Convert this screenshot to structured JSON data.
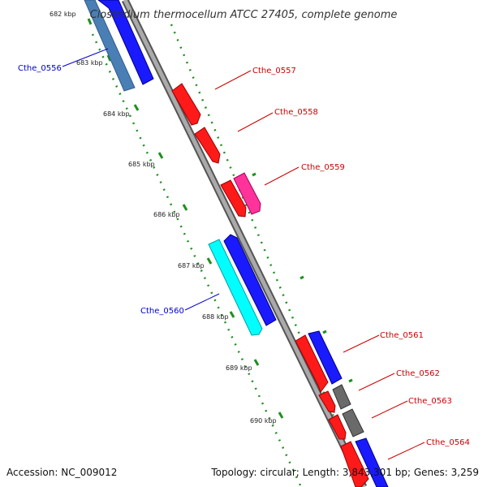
{
  "title": "Clostridium thermocellum ATCC 27405, complete genome",
  "footer": {
    "accession": "Accession: NC_009012",
    "summary": "Topology: circular; Length: 3,843,301 bp; Genes: 3,259"
  },
  "colors": {
    "forward_gene": "#ff0000",
    "reverse_gene": "#0000ff",
    "steelblue_gene": "#4a7fb5",
    "cyan_gene": "#00ffff",
    "magenta_gene": "#ff3399",
    "gray_gene": "#6a6a6a",
    "backbone": "#888888",
    "tick_marks": "#1f8f1f",
    "forward_label": "#cc0000",
    "reverse_label": "#0000cc"
  },
  "ticks": [
    "682 kbp",
    "683 kbp",
    "684 kbp",
    "685 kbp",
    "686 kbp",
    "687 kbp",
    "688 kbp",
    "689 kbp",
    "690 kbp"
  ],
  "gene_labels": {
    "left": [
      "Cthe_0556",
      "Cthe_0560"
    ],
    "right": [
      "Cthe_0557",
      "Cthe_0558",
      "Cthe_0559",
      "Cthe_0561",
      "Cthe_0562",
      "Cthe_0563",
      "Cthe_0564"
    ]
  }
}
